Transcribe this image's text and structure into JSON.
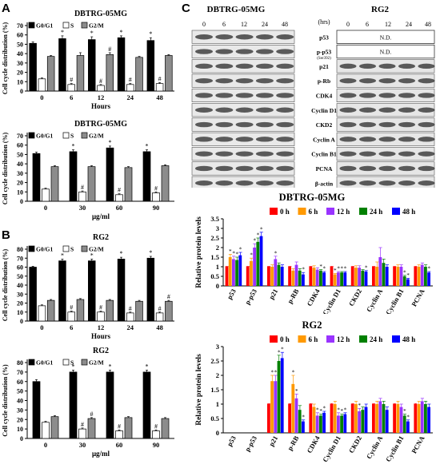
{
  "panels": {
    "A": "A",
    "B": "B",
    "C": "C"
  },
  "colors": {
    "g0g1": "#000000",
    "s": "#ffffff",
    "g2m": "#8c8c8c",
    "h0": "#ff0000",
    "h6": "#ff9900",
    "h12": "#9933ff",
    "h24": "#008000",
    "h48": "#0000ff"
  },
  "blot": {
    "cell_lines": [
      "DBTRG-05MG",
      "RG2"
    ],
    "hrs_label": "(hrs)",
    "times": [
      "0",
      "6",
      "12",
      "24",
      "48"
    ],
    "nd_label": "N.D.",
    "proteins": [
      "p53",
      "p-p53",
      "(Ser392)",
      "p21",
      "p-Rb",
      "CDK4",
      "Cyclin D1",
      "CKD2",
      "Cyclin A",
      "Cyclin B1",
      "PCNA",
      "β-actin"
    ]
  },
  "chart_data": [
    {
      "id": "A-top",
      "type": "bar",
      "title": "DBTRG-05MG",
      "xlabel": "Hours",
      "ylabel": "Cell cycle distribution (%)",
      "categories": [
        "0",
        "6",
        "12",
        "24",
        "48"
      ],
      "ylim": [
        0,
        70
      ],
      "yticks": [
        "0",
        "10",
        "20",
        "30",
        "40",
        "50",
        "60",
        "70"
      ],
      "series": [
        {
          "name": "G0/G1",
          "values": [
            51,
            56,
            55,
            57,
            54
          ],
          "errors": [
            1.5,
            3,
            3,
            2,
            3
          ],
          "sig": [
            false,
            true,
            true,
            true,
            true
          ]
        },
        {
          "name": "S",
          "values": [
            13,
            7,
            6,
            7,
            8
          ],
          "errors": [
            1,
            1,
            1,
            1,
            1
          ],
          "sig": [
            false,
            true,
            true,
            true,
            true
          ]
        },
        {
          "name": "G2/M",
          "values": [
            37,
            38,
            39,
            36,
            38
          ],
          "errors": [
            1,
            3,
            2,
            1,
            1
          ],
          "sig": [
            false,
            false,
            true,
            false,
            false
          ]
        }
      ]
    },
    {
      "id": "A-bottom",
      "type": "bar",
      "title": "DBTRG-05MG",
      "xlabel": "μg/ml",
      "ylabel": "Cell cycle distribution (%)",
      "categories": [
        "0",
        "30",
        "60",
        "90"
      ],
      "ylim": [
        0,
        70
      ],
      "yticks": [
        "0",
        "10",
        "20",
        "30",
        "40",
        "50",
        "60",
        "70"
      ],
      "series": [
        {
          "name": "G0/G1",
          "values": [
            51,
            53,
            57,
            53
          ],
          "errors": [
            1.5,
            2,
            2,
            2
          ],
          "sig": [
            false,
            true,
            true,
            true
          ]
        },
        {
          "name": "S",
          "values": [
            13,
            10,
            7,
            9
          ],
          "errors": [
            1,
            1,
            1,
            1
          ],
          "sig": [
            false,
            true,
            true,
            true
          ]
        },
        {
          "name": "G2/M",
          "values": [
            37,
            37,
            36,
            38
          ],
          "errors": [
            1,
            1,
            1,
            1
          ],
          "sig": [
            false,
            false,
            false,
            false
          ]
        }
      ]
    },
    {
      "id": "B-top",
      "type": "bar",
      "title": "RG2",
      "xlabel": "Hours",
      "ylabel": "Cell cycle distribution (%)",
      "categories": [
        "0",
        "6",
        "12",
        "24",
        "48"
      ],
      "ylim": [
        0,
        80
      ],
      "yticks": [
        "0",
        "10",
        "20",
        "30",
        "40",
        "50",
        "60",
        "70",
        "80"
      ],
      "series": [
        {
          "name": "G0/G1",
          "values": [
            60,
            67,
            67,
            69,
            70
          ],
          "errors": [
            1,
            2,
            2,
            2,
            2
          ],
          "sig": [
            false,
            true,
            true,
            true,
            true
          ]
        },
        {
          "name": "S",
          "values": [
            17,
            10,
            10,
            9,
            9
          ],
          "errors": [
            1,
            1,
            1,
            1,
            1
          ],
          "sig": [
            false,
            true,
            true,
            true,
            true
          ]
        },
        {
          "name": "G2/M",
          "values": [
            23,
            24,
            23,
            22,
            22
          ],
          "errors": [
            1,
            1,
            1,
            1,
            1
          ],
          "sig": [
            false,
            false,
            false,
            false,
            true
          ]
        }
      ]
    },
    {
      "id": "B-bottom",
      "type": "bar",
      "title": "RG2",
      "xlabel": "μg/ml",
      "ylabel": "Cell cycle distribution (%)",
      "categories": [
        "0",
        "30",
        "60",
        "90"
      ],
      "ylim": [
        0,
        80
      ],
      "yticks": [
        "0",
        "10",
        "20",
        "30",
        "40",
        "50",
        "60",
        "70",
        "80"
      ],
      "series": [
        {
          "name": "G0/G1",
          "values": [
            60,
            70,
            70,
            70
          ],
          "errors": [
            2,
            2,
            2,
            2
          ],
          "sig": [
            false,
            true,
            true,
            true
          ]
        },
        {
          "name": "S",
          "values": [
            17,
            10,
            8,
            8
          ],
          "errors": [
            1,
            1,
            1,
            1
          ],
          "sig": [
            false,
            true,
            true,
            true
          ]
        },
        {
          "name": "G2/M",
          "values": [
            23,
            21,
            22,
            21
          ],
          "errors": [
            1,
            1,
            1,
            1
          ],
          "sig": [
            false,
            true,
            false,
            false
          ]
        }
      ]
    },
    {
      "id": "C-dbtrg",
      "type": "bar",
      "title": "DBTRG-05MG",
      "ylabel": "Relative protein levels",
      "categories": [
        "p53",
        "p-p53",
        "p21",
        "p-RB",
        "CDK4",
        "Cyclin D1",
        "CKD2",
        "Cyclin A",
        "Cyclin B1",
        "PCNA"
      ],
      "ylim": [
        0,
        3.5
      ],
      "yticks": [
        "0",
        "0.5",
        "1",
        "1.5",
        "2",
        "2.5",
        "3",
        "3.5"
      ],
      "series": [
        {
          "name": "0 h",
          "values": [
            1,
            1,
            1,
            1,
            1,
            1,
            1,
            1,
            1,
            1
          ],
          "errors": [
            0.02,
            0.02,
            0.02,
            0.02,
            0.02,
            0.02,
            0.02,
            0.02,
            0.02,
            0.02
          ],
          "sig": [
            false,
            false,
            false,
            false,
            false,
            false,
            false,
            false,
            false,
            false
          ]
        },
        {
          "name": "6 h",
          "values": [
            1.5,
            1.3,
            1.0,
            0.8,
            0.95,
            0.6,
            0.95,
            1.0,
            1.0,
            1.0
          ],
          "errors": [
            0.15,
            0.15,
            0.1,
            0.1,
            0.1,
            0.05,
            0.1,
            0.25,
            0.1,
            0.1
          ],
          "sig": [
            true,
            true,
            false,
            false,
            false,
            true,
            false,
            false,
            false,
            false
          ]
        },
        {
          "name": "12 h",
          "values": [
            1.4,
            2.0,
            1.4,
            1.1,
            0.85,
            0.7,
            0.95,
            1.5,
            1.0,
            1.1
          ],
          "errors": [
            0.15,
            0.2,
            0.15,
            0.15,
            0.1,
            0.05,
            0.1,
            0.5,
            0.1,
            0.1
          ],
          "sig": [
            true,
            true,
            true,
            false,
            false,
            true,
            false,
            false,
            false,
            false
          ]
        },
        {
          "name": "24 h",
          "values": [
            1.35,
            2.3,
            1.1,
            0.8,
            0.8,
            0.7,
            0.8,
            1.2,
            0.5,
            1.0
          ],
          "errors": [
            0.15,
            0.2,
            0.1,
            0.1,
            0.05,
            0.05,
            0.05,
            0.2,
            0.05,
            0.1
          ],
          "sig": [
            true,
            true,
            false,
            false,
            true,
            true,
            false,
            false,
            true,
            false
          ]
        },
        {
          "name": "48 h",
          "values": [
            1.6,
            2.6,
            1.0,
            0.6,
            0.7,
            0.7,
            0.75,
            1.0,
            0.35,
            0.7
          ],
          "errors": [
            0.15,
            0.2,
            0.1,
            0.1,
            0.05,
            0.05,
            0.05,
            0.1,
            0.05,
            0.05
          ],
          "sig": [
            true,
            true,
            false,
            true,
            true,
            true,
            true,
            false,
            true,
            true
          ]
        }
      ]
    },
    {
      "id": "C-rg2",
      "type": "bar",
      "title": "RG2",
      "ylabel": "Relative protein levels",
      "categories": [
        "p53",
        "p-p53",
        "p21",
        "p-RB",
        "CDK4",
        "Cyclin D1",
        "CKD2",
        "Cyclin A",
        "Cyclin B1",
        "PCNA"
      ],
      "ylim": [
        0,
        3.0
      ],
      "yticks": [
        "0",
        "0.5",
        "1",
        "1.5",
        "2",
        "2.5",
        "3"
      ],
      "series": [
        {
          "name": "0 h",
          "values": [
            0,
            0,
            1,
            1,
            1,
            1,
            1,
            1,
            1,
            1
          ],
          "errors": [
            0,
            0,
            0.02,
            0.02,
            0.02,
            0.02,
            0.02,
            0.02,
            0.02,
            0.02
          ],
          "sig": [
            false,
            false,
            false,
            false,
            false,
            false,
            false,
            false,
            false,
            false
          ]
        },
        {
          "name": "6 h",
          "values": [
            0,
            0,
            1.8,
            1.7,
            0.9,
            1.0,
            1.0,
            1.0,
            1.0,
            1.0
          ],
          "errors": [
            0,
            0,
            0.2,
            0.3,
            0.1,
            0.1,
            0.1,
            0.1,
            0.1,
            0.1
          ],
          "sig": [
            false,
            false,
            true,
            true,
            false,
            false,
            false,
            false,
            false,
            false
          ]
        },
        {
          "name": "12 h",
          "values": [
            0,
            0,
            1.8,
            1.2,
            0.6,
            0.6,
            0.75,
            1.1,
            0.9,
            1.1
          ],
          "errors": [
            0,
            0,
            0.2,
            0.15,
            0.1,
            0.1,
            0.1,
            0.1,
            0.1,
            0.1
          ],
          "sig": [
            false,
            false,
            true,
            true,
            true,
            true,
            true,
            false,
            false,
            false
          ]
        },
        {
          "name": "24 h",
          "values": [
            0,
            0,
            2.5,
            0.8,
            0.6,
            0.6,
            0.8,
            1.0,
            0.6,
            1.0
          ],
          "errors": [
            0,
            0,
            0.2,
            0.15,
            0.05,
            0.05,
            0.1,
            0.1,
            0.05,
            0.1
          ],
          "sig": [
            false,
            false,
            true,
            false,
            true,
            true,
            false,
            false,
            true,
            false
          ]
        },
        {
          "name": "48 h",
          "values": [
            0,
            0,
            2.6,
            0.4,
            0.7,
            0.65,
            0.9,
            0.8,
            0.4,
            0.9
          ],
          "errors": [
            0,
            0,
            0.2,
            0.05,
            0.05,
            0.05,
            0.1,
            0.1,
            0.05,
            0.1
          ],
          "sig": [
            false,
            false,
            true,
            true,
            true,
            true,
            false,
            false,
            true,
            false
          ]
        }
      ]
    }
  ]
}
